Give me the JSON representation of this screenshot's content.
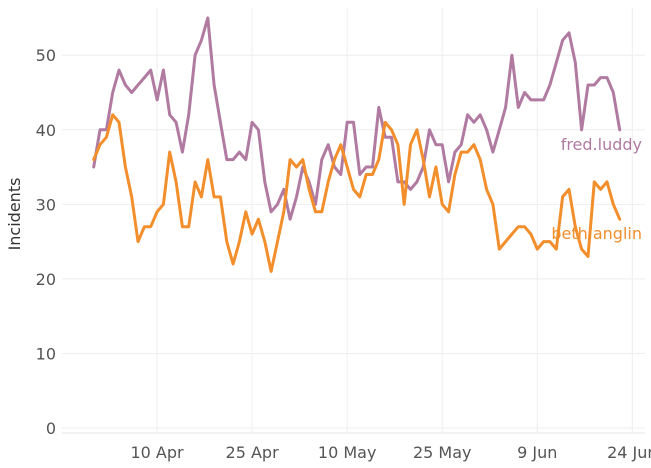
{
  "chart_data": {
    "type": "line",
    "ylabel": "Incidents",
    "xlabel": "",
    "ylim": [
      0,
      57
    ],
    "y_ticks": [
      0,
      10,
      20,
      30,
      40,
      50
    ],
    "x_start": "2024-03-26",
    "x_end": "2024-06-26",
    "x_ticks": [
      {
        "date": "2024-04-10",
        "label": "10 Apr"
      },
      {
        "date": "2024-04-25",
        "label": "25 Apr"
      },
      {
        "date": "2024-05-10",
        "label": "10 May"
      },
      {
        "date": "2024-05-25",
        "label": "25 May"
      },
      {
        "date": "2024-06-09",
        "label": "9 Jun"
      },
      {
        "date": "2024-06-24",
        "label": "24 Jun"
      }
    ],
    "grid": true,
    "series": [
      {
        "name": "fred.luddy",
        "color": "#b07aa1",
        "start_date": "2024-03-31",
        "values": [
          35,
          40,
          40,
          45,
          48,
          46,
          45,
          46,
          47,
          48,
          44,
          48,
          42,
          41,
          37,
          42,
          50,
          52,
          55,
          46,
          41,
          36,
          36,
          37,
          36,
          41,
          40,
          33,
          29,
          30,
          32,
          28,
          31,
          35,
          33,
          30,
          36,
          38,
          35,
          34,
          41,
          41,
          34,
          35,
          35,
          43,
          39,
          39,
          33,
          33,
          32,
          33,
          35,
          40,
          38,
          38,
          33,
          37,
          38,
          42,
          41,
          42,
          40,
          37,
          40,
          43,
          50,
          43,
          45,
          44,
          44,
          44,
          46,
          49,
          52,
          53,
          49,
          40,
          46,
          46,
          47,
          47,
          45,
          40
        ]
      },
      {
        "name": "beth.anglin",
        "color": "#f28e2b",
        "start_date": "2024-03-31",
        "values": [
          36,
          38,
          39,
          42,
          41,
          35,
          31,
          25,
          27,
          27,
          29,
          30,
          37,
          33,
          27,
          27,
          33,
          31,
          36,
          31,
          31,
          25,
          22,
          25,
          29,
          26,
          28,
          25,
          21,
          25,
          29,
          36,
          35,
          36,
          32,
          29,
          29,
          33,
          36,
          38,
          35,
          32,
          31,
          34,
          34,
          36,
          41,
          40,
          38,
          30,
          38,
          40,
          36,
          31,
          35,
          30,
          29,
          34,
          37,
          37,
          38,
          36,
          32,
          30,
          24,
          25,
          26,
          27,
          27,
          26,
          24,
          25,
          25,
          24,
          31,
          32,
          27,
          24,
          23,
          33,
          32,
          33,
          30,
          28
        ]
      }
    ]
  }
}
